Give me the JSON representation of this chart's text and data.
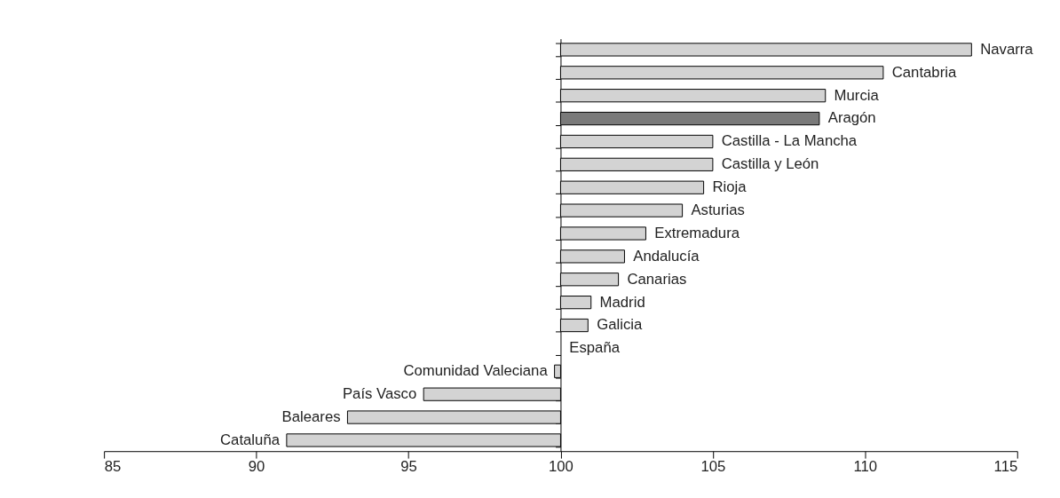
{
  "chart_data": {
    "type": "bar",
    "orientation": "horizontal",
    "categories": [
      "Navarra",
      "Cantabria",
      "Murcia",
      "Aragón",
      "Castilla - La Mancha",
      "Castilla y León",
      "Rioja",
      "Asturias",
      "Extremadura",
      "Andalucía",
      "Canarias",
      "Madrid",
      "Galicia",
      "España",
      "Comunidad Valeciana",
      "País Vasco",
      "Baleares",
      "Cataluña"
    ],
    "base": [
      100,
      100,
      100,
      100,
      100,
      100,
      100,
      100,
      100,
      100,
      100,
      100,
      100,
      null,
      100,
      100,
      100,
      100
    ],
    "values": [
      13.5,
      10.6,
      8.7,
      8.5,
      5.0,
      5.0,
      4.7,
      4.0,
      2.8,
      2.1,
      1.9,
      1.0,
      0.9,
      null,
      -0.2,
      -4.5,
      -7.0,
      -9.0
    ],
    "colors": [
      "#d3d3d3",
      "#d3d3d3",
      "#d3d3d3",
      "#7a7a7a",
      "#d3d3d3",
      "#d3d3d3",
      "#d3d3d3",
      "#d3d3d3",
      "#d3d3d3",
      "#d3d3d3",
      "#d3d3d3",
      "#d3d3d3",
      "#d3d3d3",
      "#d3d3d3",
      "#d3d3d3",
      "#d3d3d3",
      "#d3d3d3",
      "#d3d3d3"
    ],
    "xlim": [
      85,
      115
    ],
    "xticks": [
      85,
      90,
      95,
      100,
      105,
      110,
      115
    ],
    "grid": false,
    "legend": false
  }
}
